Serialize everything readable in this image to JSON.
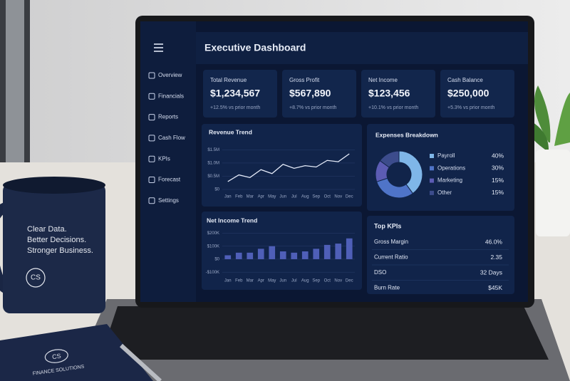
{
  "sidebar": {
    "items": [
      "Overview",
      "Financials",
      "Reports",
      "Cash Flow",
      "KPIs",
      "Forecast",
      "Settings"
    ]
  },
  "header": {
    "title": "Executive Dashboard"
  },
  "kpi_cards": [
    {
      "label": "Total Revenue",
      "value": "$1,234,567",
      "change": "+12.5% vs prior month"
    },
    {
      "label": "Gross Profit",
      "value": "$567,890",
      "change": "+8.7% vs prior month"
    },
    {
      "label": "Net Income",
      "value": "$123,456",
      "change": "+10.1% vs prior month"
    },
    {
      "label": "Cash Balance",
      "value": "$250,000",
      "change": "+5.3% vs prior month"
    }
  ],
  "chart_data": [
    {
      "type": "line",
      "title": "Revenue Trend",
      "categories": [
        "Jan",
        "Feb",
        "Mar",
        "Apr",
        "May",
        "Jun",
        "Jul",
        "Aug",
        "Sep",
        "Oct",
        "Nov",
        "Dec"
      ],
      "values": [
        0.3,
        0.55,
        0.45,
        0.75,
        0.6,
        0.95,
        0.8,
        0.9,
        0.85,
        1.1,
        1.05,
        1.35
      ],
      "color": "#e6ecfa",
      "ylim": [
        0,
        1.7
      ],
      "yticks": [
        {
          "value": 0,
          "label": "$0"
        },
        {
          "value": 0.5,
          "label": "$0.5M"
        },
        {
          "value": 1,
          "label": "$1.0M"
        },
        {
          "value": 1.5,
          "label": "$1.5M"
        }
      ],
      "grid": true
    },
    {
      "type": "pie",
      "title": "Expenses Breakdown",
      "categories": [
        "Payroll",
        "Operations",
        "Marketing",
        "Other"
      ],
      "values": [
        40,
        30,
        15,
        15
      ],
      "value_labels": [
        "40%",
        "30%",
        "15%",
        "15%"
      ],
      "colors": [
        "#7fb6e8",
        "#4f74c8",
        "#5c5cb4",
        "#3c4c8c"
      ],
      "donut": true
    },
    {
      "type": "bar",
      "title": "Net Income Trend",
      "categories": [
        "Jan",
        "Feb",
        "Mar",
        "Apr",
        "May",
        "Jun",
        "Jul",
        "Aug",
        "Sep",
        "Oct",
        "Nov",
        "Dec"
      ],
      "values": [
        30,
        50,
        50,
        80,
        100,
        60,
        50,
        60,
        80,
        110,
        120,
        160
      ],
      "color": "#4f5fb8",
      "ylim": [
        -110,
        230
      ],
      "yticks": [
        {
          "value": -100,
          "label": "-$100K"
        },
        {
          "value": 0,
          "label": "$0"
        },
        {
          "value": 100,
          "label": "$100K"
        },
        {
          "value": 200,
          "label": "$200K"
        }
      ],
      "grid": true
    }
  ],
  "top_kpis": {
    "title": "Top KPIs",
    "rows": [
      [
        "Gross Margin",
        "46.0%"
      ],
      [
        "Current Ratio",
        "2.35"
      ],
      [
        "DSO",
        "32 Days"
      ],
      [
        "Burn Rate",
        "$45K"
      ]
    ]
  },
  "mug": {
    "lines": [
      "Clear Data.",
      "Better Decisions.",
      "Stronger Business."
    ],
    "logo": "CS"
  },
  "notebook": {
    "logo": "CS",
    "text": "FINANCE SOLUTIONS"
  }
}
